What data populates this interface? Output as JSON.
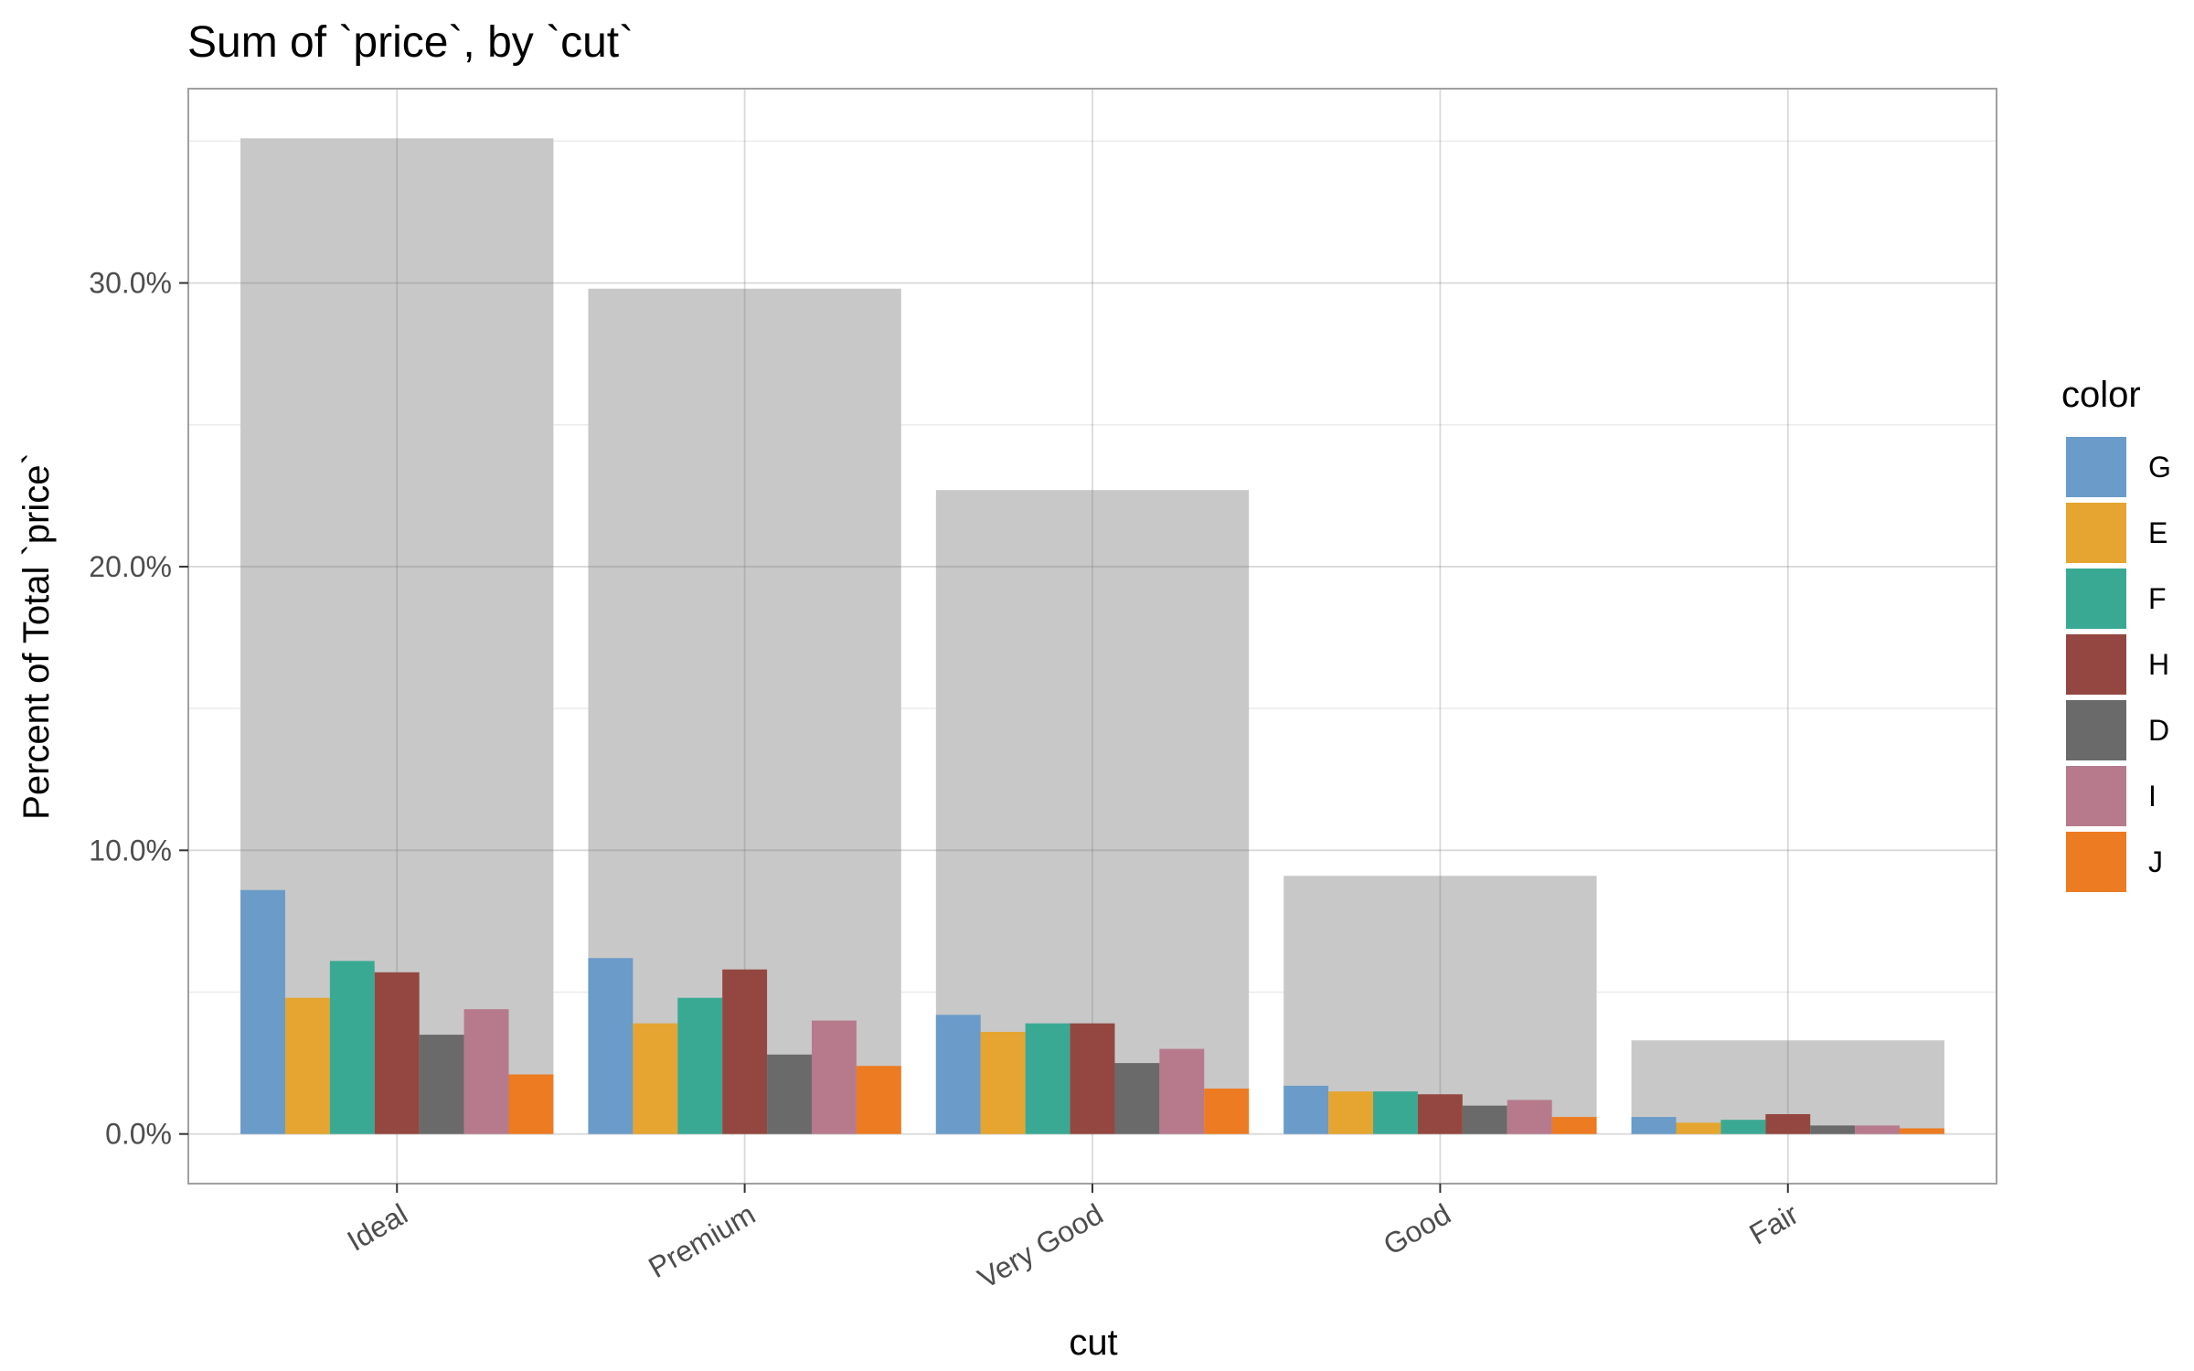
{
  "chart_data": {
    "type": "bar",
    "title": "Sum of `price`, by `cut`",
    "xlabel": "cut",
    "ylabel": "Percent of Total `price`",
    "categories": [
      "Ideal",
      "Premium",
      "Very Good",
      "Good",
      "Fair"
    ],
    "ylim": [
      -1.75,
      36.85
    ],
    "yticks": [
      0,
      10,
      20,
      30
    ],
    "ytick_labels": [
      "0.0%",
      "10.0%",
      "20.0%",
      "30.0%"
    ],
    "grid": true,
    "legend": {
      "title": "color",
      "position": "right"
    },
    "totals": {
      "color": "#c8c8c8",
      "values": [
        35.1,
        29.8,
        22.7,
        9.1,
        3.3
      ]
    },
    "series": [
      {
        "name": "G",
        "color": "#6a9bc9",
        "values": [
          8.6,
          6.2,
          4.2,
          1.7,
          0.6
        ]
      },
      {
        "name": "E",
        "color": "#e5a530",
        "values": [
          4.8,
          3.9,
          3.6,
          1.5,
          0.4
        ]
      },
      {
        "name": "F",
        "color": "#3aa994",
        "values": [
          6.1,
          4.8,
          3.9,
          1.5,
          0.5
        ]
      },
      {
        "name": "H",
        "color": "#944740",
        "values": [
          5.7,
          5.8,
          3.9,
          1.4,
          0.7
        ]
      },
      {
        "name": "D",
        "color": "#6a6a6a",
        "values": [
          3.5,
          2.8,
          2.5,
          1.0,
          0.3
        ]
      },
      {
        "name": "I",
        "color": "#b67a8c",
        "values": [
          4.4,
          4.0,
          3.0,
          1.2,
          0.3
        ]
      },
      {
        "name": "J",
        "color": "#ec7b22",
        "values": [
          2.1,
          2.4,
          1.6,
          0.6,
          0.2
        ]
      }
    ]
  }
}
